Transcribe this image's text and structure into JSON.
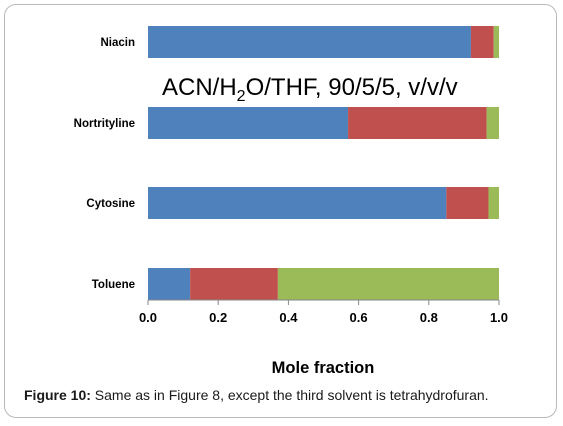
{
  "chart_data": {
    "type": "bar",
    "orientation": "horizontal",
    "stacked": true,
    "categories": [
      "Niacin",
      "Nortrityline",
      "Cytosine",
      "Toluene"
    ],
    "series": [
      {
        "color": "#4f81bd",
        "values": [
          0.92,
          0.57,
          0.85,
          0.12
        ]
      },
      {
        "color": "#c0504d",
        "values": [
          0.065,
          0.395,
          0.12,
          0.25
        ]
      },
      {
        "color": "#9bbb59",
        "values": [
          0.015,
          0.035,
          0.03,
          0.63
        ]
      }
    ],
    "xlabel": "Mole fraction",
    "xlim": [
      0,
      1.0
    ],
    "xticks": [
      "0.0",
      "0.2",
      "0.4",
      "0.6",
      "0.8",
      "1.0"
    ],
    "annotation": {
      "prefix": "ACN/H",
      "subscript": "2",
      "suffix": "O/THF, 90/5/5, v/v/v"
    },
    "grid": false,
    "legend": "none"
  },
  "caption": {
    "label": "Figure 10:",
    "text": " Same as in Figure 8, except the third solvent is tetrahydrofuran."
  }
}
